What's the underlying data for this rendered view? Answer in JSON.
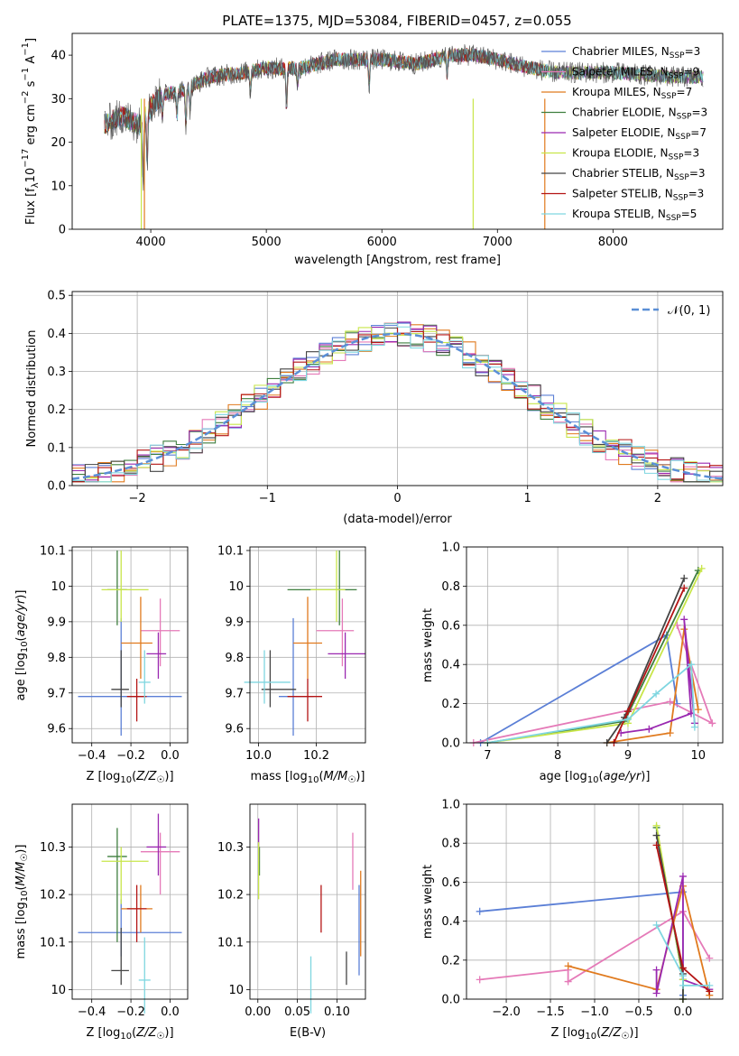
{
  "figure_title": "PLATE=1375, MJD=53084, FIBERID=0457, z=0.055",
  "colors": {
    "Chabrier MILES": "#5b7fd6",
    "Salpeter MILES": "#e57ab8",
    "Kroupa MILES": "#e07a1e",
    "Chabrier ELODIE": "#3f7f3f",
    "Salpeter ELODIE": "#9a28b0",
    "Kroupa ELODIE": "#c8e64a",
    "Chabrier STELIB": "#444444",
    "Salpeter STELIB": "#b41414",
    "Kroupa STELIB": "#7fd6e0"
  },
  "legend_top": [
    {
      "model": "Chabrier MILES",
      "pre": "Chabrier MILES, N",
      "sub": "SSP",
      "post": "=3"
    },
    {
      "model": "Salpeter MILES",
      "pre": "Salpeter MILES, N",
      "sub": "SSP",
      "post": "=9"
    },
    {
      "model": "Kroupa MILES",
      "pre": "Kroupa MILES, N",
      "sub": "SSP",
      "post": "=7"
    },
    {
      "model": "Chabrier ELODIE",
      "pre": "Chabrier ELODIE, N",
      "sub": "SSP",
      "post": "=3"
    },
    {
      "model": "Salpeter ELODIE",
      "pre": "Salpeter ELODIE, N",
      "sub": "SSP",
      "post": "=7"
    },
    {
      "model": "Kroupa ELODIE",
      "pre": "Kroupa ELODIE, N",
      "sub": "SSP",
      "post": "=3"
    },
    {
      "model": "Chabrier STELIB",
      "pre": "Chabrier STELIB, N",
      "sub": "SSP",
      "post": "=3"
    },
    {
      "model": "Salpeter STELIB",
      "pre": "Salpeter STELIB, N",
      "sub": "SSP",
      "post": "=3"
    },
    {
      "model": "Kroupa STELIB",
      "pre": "Kroupa STELIB, N",
      "sub": "SSP",
      "post": "=5"
    }
  ],
  "chart_data": [
    {
      "id": "spectrum",
      "type": "line",
      "xlabel": "wavelength [Angstrom, rest frame]",
      "ylabel_parts": {
        "a": "Flux [f",
        "b": "λ",
        "c": "10",
        "d": "−17",
        "e": " erg cm",
        "f": "−2",
        "g": " s",
        "h": "−1",
        "i": " A",
        "j": "−1",
        "k": "]"
      },
      "xlim": [
        3320,
        8950
      ],
      "ylim": [
        0,
        45
      ],
      "xticks": [
        4000,
        5000,
        6000,
        7000,
        8000
      ],
      "yticks": [
        0,
        10,
        20,
        30,
        40
      ],
      "continuum": {
        "x": [
          3600,
          3750,
          3900,
          4000,
          4100,
          4300,
          4500,
          4800,
          5000,
          5300,
          5600,
          6000,
          6300,
          6600,
          6800,
          7000,
          7300,
          7500,
          8000,
          8500,
          8800
        ],
        "y": [
          24,
          26,
          24,
          28,
          31,
          32,
          35,
          36,
          37,
          37,
          39,
          39,
          38,
          40,
          40,
          39,
          37,
          36,
          36,
          35,
          35
        ]
      },
      "absorption_lines": [
        {
          "x": 3934,
          "depth": 14
        },
        {
          "x": 3969,
          "depth": 11
        },
        {
          "x": 4102,
          "depth": 5
        },
        {
          "x": 4227,
          "depth": 6
        },
        {
          "x": 4304,
          "depth": 8
        },
        {
          "x": 4340,
          "depth": 5
        },
        {
          "x": 4861,
          "depth": 5
        },
        {
          "x": 5175,
          "depth": 9
        },
        {
          "x": 5270,
          "depth": 4
        },
        {
          "x": 5890,
          "depth": 6
        },
        {
          "x": 6563,
          "depth": 4
        }
      ],
      "masked_drops": [
        3918,
        3945,
        6790,
        7410
      ]
    },
    {
      "id": "residuals",
      "type": "histogram",
      "xlabel": "(data-model)/error",
      "ylabel": "Normed distribution",
      "xlim": [
        -2.5,
        2.5
      ],
      "ylim": [
        0,
        0.51
      ],
      "xticks": [
        -2,
        -1,
        0,
        1,
        2
      ],
      "yticks": [
        0.0,
        0.1,
        0.2,
        0.3,
        0.4,
        0.5
      ],
      "ytick_labels": [
        "0.0",
        "0.1",
        "0.2",
        "0.3",
        "0.4",
        "0.5"
      ],
      "xtick_labels": [
        "−2",
        "−1",
        "0",
        "1",
        "2"
      ],
      "bin_width": 0.1,
      "reference_label": "𝒩(0, 1)",
      "reference_color": "#5b8fd6"
    },
    {
      "id": "z_age",
      "type": "scatter",
      "xlabel": "Z [log10(Z/Z☉)]",
      "ylabel": "age  [log10(age/yr)]",
      "xlim": [
        -0.5,
        0.09
      ],
      "ylim": [
        9.56,
        10.11
      ],
      "xticks": [
        -0.4,
        -0.2,
        0.0
      ],
      "xtick_labels": [
        "−0.4",
        "−0.2",
        "0.0"
      ],
      "yticks": [
        9.6,
        9.7,
        9.8,
        9.9,
        10.0,
        10.1
      ]
    },
    {
      "id": "mass_age",
      "type": "scatter",
      "xlabel": "mass [log10(M/M☉)]",
      "xlim": [
        9.97,
        10.37
      ],
      "ylim": [
        9.56,
        10.11
      ],
      "xticks": [
        10.0,
        10.2
      ],
      "xtick_labels": [
        "10.0",
        "10.2"
      ],
      "yticks": [
        9.6,
        9.7,
        9.8,
        9.9,
        10.0,
        10.1
      ]
    },
    {
      "id": "age_weight",
      "type": "line",
      "xlabel": "age  [log10(age/yr)]",
      "ylabel": "mass weight",
      "xlim": [
        6.7,
        10.35
      ],
      "ylim": [
        0,
        1
      ],
      "xticks": [
        7,
        8,
        9,
        10
      ],
      "yticks": [
        0.0,
        0.2,
        0.4,
        0.6,
        0.8,
        1.0
      ]
    },
    {
      "id": "z_mass",
      "type": "scatter",
      "xlabel": "Z [log10(Z/Z☉)]",
      "ylabel": "mass [log10(M/M☉)]",
      "xlim": [
        -0.5,
        0.09
      ],
      "ylim": [
        9.98,
        10.39
      ],
      "xticks": [
        -0.4,
        -0.2,
        0.0
      ],
      "xtick_labels": [
        "−0.4",
        "−0.2",
        "0.0"
      ],
      "yticks": [
        10.0,
        10.1,
        10.2,
        10.3
      ]
    },
    {
      "id": "ebv_mass",
      "type": "scatter",
      "xlabel": "E(B-V)",
      "xlim": [
        -0.01,
        0.136
      ],
      "ylim": [
        9.98,
        10.39
      ],
      "xticks": [
        0.0,
        0.05,
        0.1
      ],
      "xtick_labels": [
        "0.00",
        "0.05",
        "0.10"
      ],
      "yticks": [
        10.0,
        10.1,
        10.2,
        10.3
      ]
    },
    {
      "id": "z_weight",
      "type": "line",
      "xlabel": "Z [log10(Z/Z☉)]",
      "ylabel": "mass weight",
      "xlim": [
        -2.45,
        0.45
      ],
      "ylim": [
        0,
        1
      ],
      "xticks": [
        -2.0,
        -1.5,
        -1.0,
        -0.5,
        0.0
      ],
      "xtick_labels": [
        "−2.0",
        "−1.5",
        "−1.0",
        "−0.5",
        "0.0"
      ],
      "yticks": [
        0.0,
        0.2,
        0.4,
        0.6,
        0.8,
        1.0
      ]
    }
  ],
  "model_params": [
    {
      "model": "Chabrier MILES",
      "Z": -0.25,
      "Zerr": [
        0.22,
        0.31
      ],
      "age": 9.69,
      "ageerr": [
        0.11,
        0.22
      ],
      "mass": 10.12,
      "masserr": [
        0.05,
        0.07
      ],
      "ebv": 0.128,
      "ebverr": [
        0.09,
        0.1
      ],
      "age_w": [
        [
          6.9,
          0.0
        ],
        [
          9.55,
          0.55
        ],
        [
          9.7,
          0.2
        ]
      ],
      "z_w": [
        [
          -2.3,
          0.45
        ],
        [
          0.0,
          0.55
        ],
        [
          0.0,
          0.02
        ]
      ]
    },
    {
      "model": "Salpeter MILES",
      "Z": -0.05,
      "Zerr": [
        0.1,
        0.1
      ],
      "age": 9.875,
      "ageerr": [
        0.1,
        0.09
      ],
      "mass": 10.29,
      "masserr": [
        0.09,
        0.04
      ],
      "ebv": 0.12,
      "ebverr": [
        0.08,
        0.04
      ],
      "age_w": [
        [
          6.8,
          0.0
        ],
        [
          9.6,
          0.21
        ],
        [
          10.2,
          0.1
        ],
        [
          9.7,
          0.6
        ]
      ],
      "z_w": [
        [
          -2.3,
          0.1
        ],
        [
          -1.3,
          0.15
        ],
        [
          -1.3,
          0.09
        ],
        [
          0.0,
          0.45
        ],
        [
          0.3,
          0.21
        ]
      ]
    },
    {
      "model": "Kroupa MILES",
      "Z": -0.15,
      "Zerr": [
        0.1,
        0.06
      ],
      "age": 9.84,
      "ageerr": [
        0.1,
        0.13
      ],
      "mass": 10.17,
      "masserr": [
        0.05,
        0.05
      ],
      "ebv": 0.13,
      "ebverr": [
        0.1,
        0.08
      ],
      "age_w": [
        [
          8.7,
          0.0
        ],
        [
          9.6,
          0.05
        ],
        [
          9.8,
          0.58
        ],
        [
          10.0,
          0.17
        ]
      ],
      "z_w": [
        [
          -1.3,
          0.17
        ],
        [
          -0.3,
          0.05
        ],
        [
          0.0,
          0.58
        ],
        [
          0.3,
          0.02
        ]
      ]
    },
    {
      "model": "Chabrier ELODIE",
      "Z": -0.27,
      "Zerr": [
        0.05,
        0.05
      ],
      "age": 9.99,
      "ageerr": [
        0.1,
        0.11
      ],
      "mass": 10.28,
      "masserr": [
        0.18,
        0.06
      ],
      "ebv": 0.002,
      "ebverr": [
        0.04,
        0.02
      ],
      "age_w": [
        [
          7.0,
          0.0
        ],
        [
          8.95,
          0.11
        ],
        [
          10.0,
          0.88
        ]
      ],
      "z_w": [
        [
          -0.3,
          0.88
        ],
        [
          0.0,
          0.1
        ],
        [
          0.0,
          0.0
        ]
      ]
    },
    {
      "model": "Salpeter ELODIE",
      "Z": -0.06,
      "Zerr": [
        0.06,
        0.04
      ],
      "age": 9.81,
      "ageerr": [
        0.07,
        0.06
      ],
      "mass": 10.3,
      "masserr": [
        0.06,
        0.07
      ],
      "ebv": 0.001,
      "ebverr": [
        0.03,
        0.06
      ],
      "age_w": [
        [
          8.9,
          0.05
        ],
        [
          9.3,
          0.07
        ],
        [
          9.9,
          0.15
        ],
        [
          9.8,
          0.63
        ],
        [
          9.95,
          0.1
        ]
      ],
      "z_w": [
        [
          -0.3,
          0.15
        ],
        [
          -0.3,
          0.03
        ],
        [
          0.0,
          0.63
        ],
        [
          0.0,
          0.1
        ],
        [
          0.3,
          0.05
        ]
      ]
    },
    {
      "model": "Kroupa ELODIE",
      "Z": -0.25,
      "Zerr": [
        0.1,
        0.14
      ],
      "age": 9.99,
      "ageerr": [
        0.09,
        0.11
      ],
      "mass": 10.27,
      "masserr": [
        0.09,
        0.03
      ],
      "ebv": 0.001,
      "ebverr": [
        0.08,
        0.04
      ],
      "age_w": [
        [
          7.0,
          0.0
        ],
        [
          9.0,
          0.1
        ],
        [
          10.05,
          0.89
        ]
      ],
      "z_w": [
        [
          -0.3,
          0.89
        ],
        [
          0.0,
          0.1
        ],
        [
          0.0,
          0.0
        ]
      ]
    },
    {
      "model": "Chabrier STELIB",
      "Z": -0.25,
      "Zerr": [
        0.05,
        0.04
      ],
      "age": 9.71,
      "ageerr": [
        0.05,
        0.11
      ],
      "mass": 10.04,
      "masserr": [
        0.03,
        0.09
      ],
      "ebv": 0.112,
      "ebverr": [
        0.03,
        0.04
      ],
      "age_w": [
        [
          8.7,
          0.0
        ],
        [
          8.95,
          0.13
        ],
        [
          9.8,
          0.84
        ]
      ],
      "z_w": [
        [
          -0.3,
          0.84
        ],
        [
          0.0,
          0.13
        ],
        [
          0.0,
          0.0
        ]
      ]
    },
    {
      "model": "Salpeter STELIB",
      "Z": -0.17,
      "Zerr": [
        0.05,
        0.05
      ],
      "age": 9.69,
      "ageerr": [
        0.07,
        0.05
      ],
      "mass": 10.17,
      "masserr": [
        0.07,
        0.05
      ],
      "ebv": 0.08,
      "ebverr": [
        0.05,
        0.05
      ],
      "age_w": [
        [
          8.8,
          0.0
        ],
        [
          9.0,
          0.16
        ],
        [
          9.8,
          0.79
        ]
      ],
      "z_w": [
        [
          -0.3,
          0.79
        ],
        [
          0.0,
          0.16
        ],
        [
          0.3,
          0.04
        ]
      ]
    },
    {
      "model": "Kroupa STELIB",
      "Z": -0.13,
      "Zerr": [
        0.03,
        0.03
      ],
      "age": 9.73,
      "ageerr": [
        0.06,
        0.09
      ],
      "mass": 10.02,
      "masserr": [
        0.07,
        0.09
      ],
      "ebv": 0.067,
      "ebverr": [
        0.07,
        0.05
      ],
      "age_w": [
        [
          7.0,
          0.0
        ],
        [
          9.0,
          0.12
        ],
        [
          9.4,
          0.25
        ],
        [
          9.9,
          0.4
        ],
        [
          9.95,
          0.08
        ]
      ],
      "z_w": [
        [
          -0.3,
          0.38
        ],
        [
          0.0,
          0.12
        ],
        [
          0.0,
          0.07
        ],
        [
          0.3,
          0.07
        ]
      ]
    }
  ]
}
